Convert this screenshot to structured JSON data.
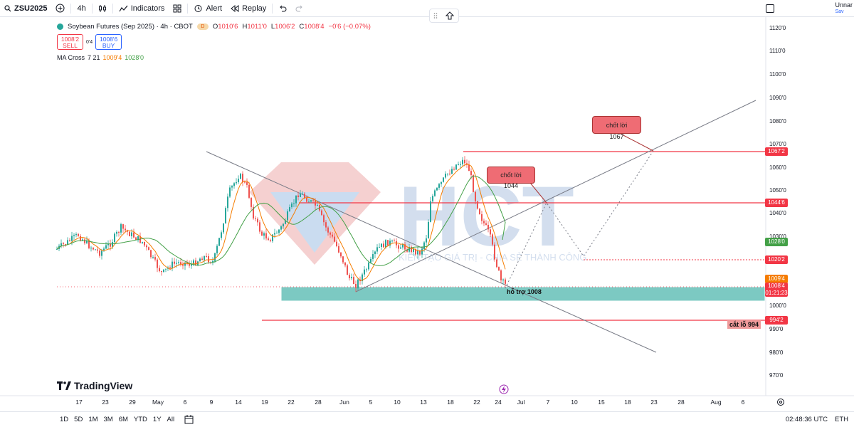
{
  "topbar": {
    "symbol": "ZSU2025",
    "interval": "4h",
    "indicators_label": "Indicators",
    "alert_label": "Alert",
    "replay_label": "Replay",
    "user_label": "Unnar",
    "user_sub": "Sav"
  },
  "legend": {
    "title": "Soybean Futures (Sep 2025) · 4h · CBOT",
    "open_label": "O",
    "open": "1010'6",
    "high_label": "H",
    "high": "1011'0",
    "low_label": "L",
    "low": "1006'2",
    "close_label": "C",
    "close": "1008'4",
    "change": "−0'6 (−0.07%)",
    "sell_price": "1008'2",
    "sell_label": "SELL",
    "spread": "0'4",
    "buy_price": "1008'6",
    "buy_label": "BUY",
    "ma_name": "MA Cross",
    "ma_params": "7 21",
    "ma_fast": "1009'4",
    "ma_slow": "1028'0"
  },
  "price_axis": [
    "1120'0",
    "1110'0",
    "1100'0",
    "1090'0",
    "1080'0",
    "1070'0",
    "1060'0",
    "1050'0",
    "1040'0",
    "1030'0",
    "1020'0",
    "1000'0",
    "990'0",
    "980'0",
    "970'0"
  ],
  "price_tags": {
    "t1067": "1067'2",
    "t1044": "1044'6",
    "t1028": "1028'0",
    "t1020": "1020'2",
    "t1009": "1009'4",
    "t1008": "1008'4",
    "countdown": "01:21:23",
    "t994": "994'2"
  },
  "time_axis": [
    "17",
    "23",
    "29",
    "May",
    "6",
    "9",
    "14",
    "19",
    "22",
    "28",
    "Jun",
    "5",
    "10",
    "13",
    "18",
    "22",
    "24",
    "Jul",
    "7",
    "10",
    "15",
    "18",
    "23",
    "28",
    "Aug",
    "6"
  ],
  "annotations": {
    "tp1": "chốt lời 1067",
    "tp2": "chốt lời 1044",
    "support": "hỗ trợ 1008",
    "stoploss": "cắt lỗ 994",
    "watermark_logo": "HCT",
    "watermark_text": "KIẾN TẠO GIÁ TRỊ - CHIA SẺ THÀNH CÔNG"
  },
  "brand": "TradingView",
  "bottombar": {
    "ranges": [
      "1D",
      "5D",
      "1M",
      "3M",
      "6M",
      "YTD",
      "1Y",
      "All"
    ],
    "clock": "02:48:36 UTC",
    "session": "ETH"
  },
  "colors": {
    "up": "#26a69a",
    "down": "#ef5350",
    "ma_fast": "#f57c00",
    "ma_slow": "#43a047",
    "level_line": "#f23645",
    "support_zone": "#26a69a"
  }
}
